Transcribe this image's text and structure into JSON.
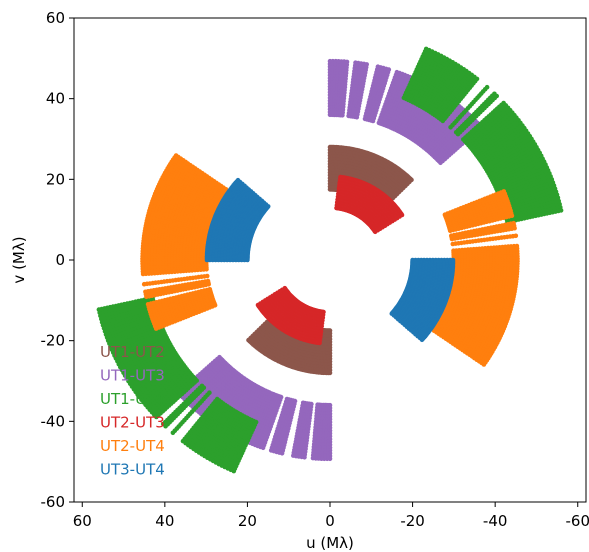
{
  "chart_data": {
    "type": "scatter",
    "title": "",
    "xlabel": "u (Mλ)",
    "ylabel": "v (Mλ)",
    "xlim": [
      62,
      -62
    ],
    "ylim": [
      -60,
      60
    ],
    "x_ticks": [
      "60",
      "40",
      "20",
      "0",
      "-20",
      "-40",
      "-60"
    ],
    "x_tick_values": [
      60,
      40,
      20,
      0,
      -20,
      -40,
      -60
    ],
    "y_ticks": [
      "60",
      "40",
      "20",
      "0",
      "-20",
      "-40",
      "-60"
    ],
    "y_tick_values": [
      60,
      40,
      20,
      0,
      -20,
      -40,
      -60
    ],
    "legend_placement": "lower-left",
    "grid": false,
    "series": [
      {
        "name": "UT1-UT2",
        "color": "#8c564b",
        "arc": {
          "r_in": 17.5,
          "r_out": 28.5,
          "ang_start": 90,
          "ang_end": 135
        },
        "gaps": []
      },
      {
        "name": "UT1-UT3",
        "color": "#9467bd",
        "arc": {
          "r_in": 36,
          "r_out": 50,
          "ang_start": 90,
          "ang_end": 138
        },
        "gaps": [
          96,
          102,
          108
        ]
      },
      {
        "name": "UT1-UT4",
        "color": "#2ca02c",
        "arc": {
          "r_in": 44,
          "r_out": 58,
          "ang_start": 114,
          "ang_end": 168
        },
        "gaps": [
          130,
          133,
          136
        ]
      },
      {
        "name": "UT2-UT3",
        "color": "#d62728",
        "arc": {
          "r_in": 13,
          "r_out": 21,
          "ang_start": 97,
          "ang_end": 148
        },
        "gaps": []
      },
      {
        "name": "UT2-UT4",
        "color": "#ff7f0e",
        "arc": {
          "r_in": 30,
          "r_out": 46,
          "ang_start": 158,
          "ang_end": 215
        },
        "gaps": [
          167,
          171,
          174
        ]
      },
      {
        "name": "UT3-UT4",
        "color": "#1f77b4",
        "arc": {
          "r_in": 20,
          "r_out": 30,
          "ang_start": 180,
          "ang_end": 222
        },
        "gaps": []
      }
    ]
  }
}
